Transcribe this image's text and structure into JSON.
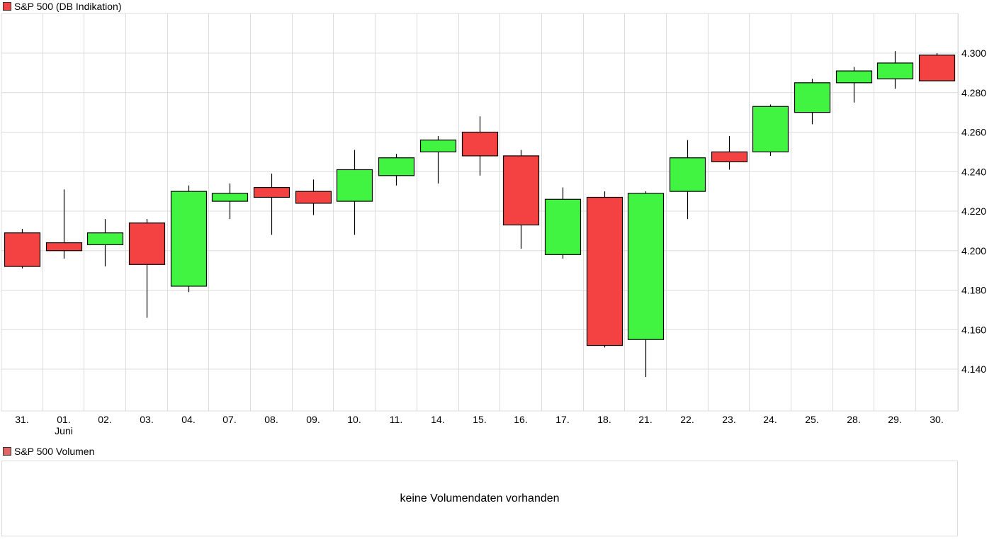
{
  "main_legend": {
    "label": "S&P 500 (DB Indikation)",
    "color": "#f44242"
  },
  "volume_legend": {
    "label": "S&P 500 Volumen",
    "color": "#e06666"
  },
  "volume_panel": {
    "message": "keine Volumendaten vorhanden"
  },
  "colors": {
    "up": "#41f441",
    "down": "#f44242",
    "grid": "#dcdcdc",
    "wick": "#000000"
  },
  "chart_data": {
    "type": "candlestick",
    "title": "S&P 500 (DB Indikation)",
    "xlabel": "",
    "ylabel": "",
    "ylim": [
      4120,
      4318
    ],
    "yticks": [
      4140,
      4160,
      4180,
      4200,
      4220,
      4240,
      4260,
      4280,
      4300
    ],
    "ytick_labels": [
      "4.140",
      "4.160",
      "4.180",
      "4.200",
      "4.220",
      "4.240",
      "4.260",
      "4.280",
      "4.300"
    ],
    "grid": true,
    "legend_position": "top-left",
    "month_label": {
      "under": "01.",
      "text": "Juni"
    },
    "categories": [
      "31.",
      "01.",
      "02.",
      "03.",
      "04.",
      "07.",
      "08.",
      "09.",
      "10.",
      "11.",
      "14.",
      "15.",
      "16.",
      "17.",
      "18.",
      "21.",
      "22.",
      "23.",
      "24.",
      "25.",
      "28.",
      "29.",
      "30."
    ],
    "series": [
      {
        "name": "open",
        "values": [
          4209,
          4204,
          4203,
          4214,
          4182,
          4225,
          4232,
          4230,
          4225,
          4238,
          4250,
          4260,
          4248,
          4198,
          4227,
          4155,
          4230,
          4250,
          4250,
          4270,
          4285,
          4287,
          4299
        ]
      },
      {
        "name": "high",
        "values": [
          4211,
          4231,
          4216,
          4216,
          4233,
          4234,
          4239,
          4236,
          4251,
          4249,
          4258,
          4268,
          4251,
          4232,
          4230,
          4230,
          4256,
          4258,
          4274,
          4287,
          4293,
          4301,
          4300
        ]
      },
      {
        "name": "low",
        "values": [
          4191,
          4196,
          4192,
          4166,
          4179,
          4216,
          4208,
          4218,
          4208,
          4233,
          4234,
          4238,
          4201,
          4196,
          4151,
          4136,
          4216,
          4241,
          4248,
          4264,
          4275,
          4282,
          4286
        ]
      },
      {
        "name": "close",
        "values": [
          4192,
          4200,
          4209,
          4193,
          4230,
          4229,
          4227,
          4224,
          4241,
          4247,
          4256,
          4248,
          4213,
          4226,
          4152,
          4229,
          4247,
          4245,
          4273,
          4285,
          4291,
          4295,
          4286
        ]
      }
    ]
  }
}
